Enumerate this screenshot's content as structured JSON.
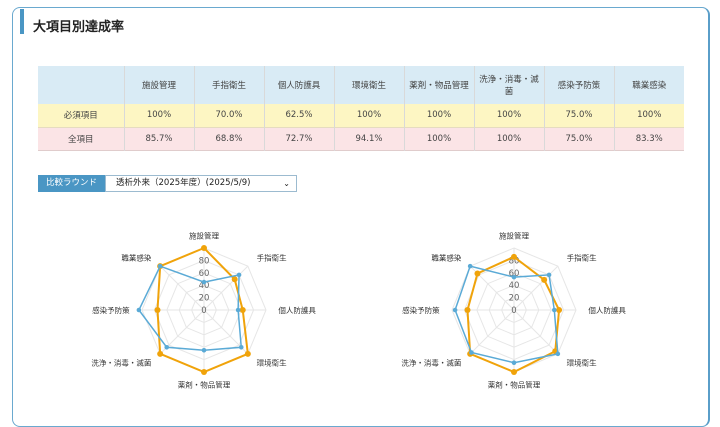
{
  "title": "大項目別達成率",
  "table": {
    "headers": [
      "",
      "施設管理",
      "手指衛生",
      "個人防護具",
      "環境衛生",
      "薬剤・物品管理",
      "洗浄・消毒・滅菌",
      "感染予防策",
      "職業感染"
    ],
    "rows": [
      {
        "label": "必須項目",
        "values": [
          "100%",
          "70.0%",
          "62.5%",
          "100%",
          "100%",
          "100%",
          "75.0%",
          "100%"
        ]
      },
      {
        "label": "全項目",
        "values": [
          "85.7%",
          "68.8%",
          "72.7%",
          "94.1%",
          "100%",
          "100%",
          "75.0%",
          "83.3%"
        ]
      }
    ]
  },
  "compare": {
    "label": "比較ラウンド",
    "selected": "透析外来（2025年度）(2025/5/9)",
    "icon": "chevron-down-icon"
  },
  "chart_data": [
    {
      "type": "radar",
      "categories": [
        "施設管理",
        "手指衛生",
        "個人防護具",
        "環境衛生",
        "薬剤・物品管理",
        "洗浄・消毒・滅菌",
        "感染予防策",
        "職業感染"
      ],
      "ticks": [
        "0",
        "20",
        "40",
        "60",
        "80"
      ],
      "rmax": 100,
      "series": [
        {
          "color": "#f0a30a",
          "values": [
            100,
            70,
            62.5,
            100,
            100,
            100,
            75,
            100
          ]
        },
        {
          "color": "#5aaad6",
          "values": [
            45,
            80,
            55,
            85,
            65,
            85,
            105,
            100
          ]
        }
      ]
    },
    {
      "type": "radar",
      "categories": [
        "施設管理",
        "手指衛生",
        "個人防護具",
        "環境衛生",
        "薬剤・物品管理",
        "洗浄・消毒・滅菌",
        "感染予防策",
        "職業感染"
      ],
      "ticks": [
        "0",
        "20",
        "40",
        "60",
        "80"
      ],
      "rmax": 100,
      "series": [
        {
          "color": "#f0a30a",
          "values": [
            85.7,
            68.8,
            72.7,
            94.1,
            100,
            100,
            75,
            83.3
          ]
        },
        {
          "color": "#5aaad6",
          "values": [
            53,
            80,
            65,
            100,
            85,
            97,
            95,
            100
          ]
        }
      ]
    }
  ]
}
